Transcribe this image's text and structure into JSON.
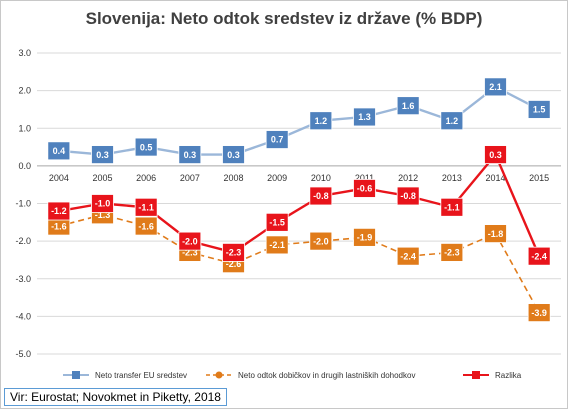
{
  "title": "Slovenija: Neto odtok sredstev iz države (% BDP)",
  "source": "Vir: Eurostat; Novokmet in Piketty, 2018",
  "chart_data": {
    "type": "line",
    "title": "Slovenija: Neto odtok sredstev iz države (% BDP)",
    "x": [
      "2004",
      "2005",
      "2006",
      "2007",
      "2008",
      "2009",
      "2010",
      "2011",
      "2012",
      "2013",
      "2014",
      "2015"
    ],
    "ylim": [
      -5.0,
      3.0
    ],
    "yticks": [
      "3.0",
      "2.0",
      "1.0",
      "0.0",
      "-1.0",
      "-2.0",
      "-3.0",
      "-4.0",
      "-5.0"
    ],
    "grid": true,
    "legend": "bottom",
    "series": [
      {
        "name": "Neto transfer EU sredstev",
        "values": [
          0.4,
          0.3,
          0.5,
          0.3,
          0.3,
          0.7,
          1.2,
          1.3,
          1.6,
          1.2,
          2.1,
          1.5
        ],
        "labels": [
          "0.4",
          "0.3",
          "0.5",
          "0.3",
          "0.3",
          "0.7",
          "1.2",
          "1.3",
          "1.6",
          "1.2",
          "2.1",
          "1.5"
        ],
        "color": "#4f81bd",
        "stroke": "#9bb7d9",
        "dash": false
      },
      {
        "name": "Neto odtok dobičkov in drugih lastniških dohodkov",
        "values": [
          -1.6,
          -1.3,
          -1.6,
          -2.3,
          -2.6,
          -2.1,
          -2.0,
          -1.9,
          -2.4,
          -2.3,
          -1.8,
          -3.9
        ],
        "labels": [
          "-1.6",
          "-1.3",
          "-1.6",
          "-2.3",
          "-2.6",
          "-2.1",
          "-2.0",
          "-1.9",
          "-2.4",
          "-2.3",
          "-1.8",
          "-3.9"
        ],
        "color": "#e07b1a",
        "stroke": "#e07b1a",
        "dash": true
      },
      {
        "name": "Razlika",
        "values": [
          -1.2,
          -1.0,
          -1.1,
          -2.0,
          -2.3,
          -1.5,
          -0.8,
          -0.6,
          -0.8,
          -1.1,
          0.3,
          -2.4
        ],
        "labels": [
          "-1.2",
          "-1.0",
          "-1.1",
          "-2.0",
          "-2.3",
          "-1.5",
          "-0.8",
          "-0.6",
          "-0.8",
          "-1.1",
          "0.3",
          "-2.4"
        ],
        "color": "#e8141b",
        "stroke": "#e8141b",
        "dash": false
      }
    ]
  }
}
